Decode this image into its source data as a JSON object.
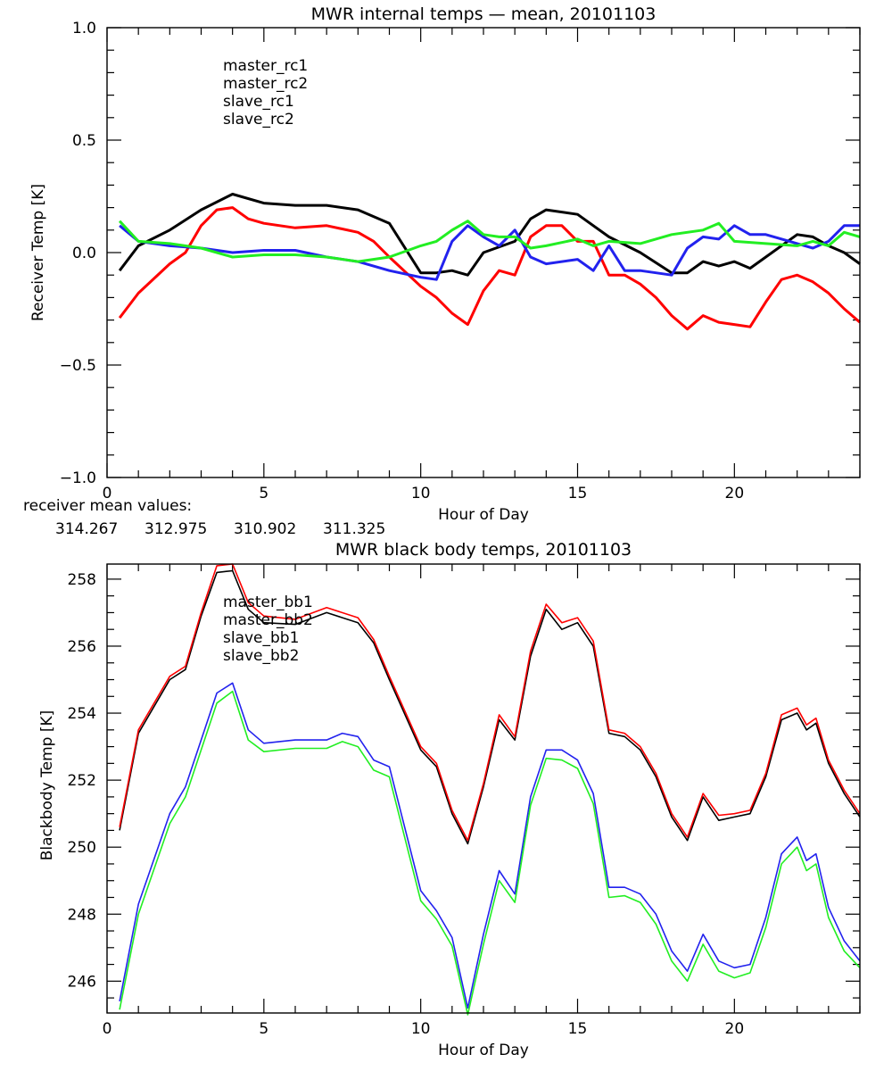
{
  "chart_data": [
    {
      "type": "line",
      "title": "MWR internal temps — mean, 20101103",
      "xlabel": "Hour of Day",
      "ylabel": "Receiver Temp [K]",
      "xlim": [
        0,
        24
      ],
      "ylim": [
        -1.0,
        1.0
      ],
      "xticks": [
        0,
        5,
        10,
        15,
        20
      ],
      "xtick_labels": [
        "0",
        "5",
        "10",
        "15",
        "20"
      ],
      "yticks": [
        -1.0,
        -0.5,
        0.0,
        0.5,
        1.0
      ],
      "ytick_labels": [
        "−1.0",
        "−0.5",
        "0.0",
        "0.5",
        "1.0"
      ],
      "grid": false,
      "legend_position": "top-left",
      "series": [
        {
          "name": "master_rc1",
          "color": "#000000",
          "x": [
            0.4,
            1,
            2,
            3,
            4,
            5,
            6,
            7,
            8,
            9,
            10,
            10.5,
            11,
            11.5,
            12,
            13,
            13.5,
            14,
            15,
            16,
            17,
            18,
            18.5,
            19,
            19.5,
            20,
            20.5,
            21,
            22,
            22.5,
            23,
            23.5,
            24
          ],
          "values": [
            -0.08,
            0.03,
            0.1,
            0.19,
            0.26,
            0.22,
            0.21,
            0.21,
            0.19,
            0.13,
            -0.09,
            -0.09,
            -0.08,
            -0.1,
            0.0,
            0.05,
            0.15,
            0.19,
            0.17,
            0.07,
            0.0,
            -0.09,
            -0.09,
            -0.04,
            -0.06,
            -0.04,
            -0.07,
            -0.02,
            0.08,
            0.07,
            0.03,
            0.0,
            -0.05
          ]
        },
        {
          "name": "master_rc2",
          "color": "#ff0000",
          "x": [
            0.4,
            1,
            2,
            2.5,
            3,
            3.5,
            4,
            4.5,
            5,
            6,
            7,
            8,
            8.5,
            9,
            10,
            10.5,
            11,
            11.5,
            12,
            12.5,
            13,
            13.5,
            14,
            14.5,
            15,
            15.5,
            16,
            16.5,
            17,
            17.5,
            18,
            18.5,
            19,
            19.5,
            20,
            20.5,
            21,
            21.5,
            22,
            22.5,
            23,
            23.5,
            24
          ],
          "values": [
            -0.29,
            -0.18,
            -0.05,
            0.0,
            0.12,
            0.19,
            0.2,
            0.15,
            0.13,
            0.11,
            0.12,
            0.09,
            0.05,
            -0.02,
            -0.15,
            -0.2,
            -0.27,
            -0.32,
            -0.17,
            -0.08,
            -0.1,
            0.07,
            0.12,
            0.12,
            0.05,
            0.05,
            -0.1,
            -0.1,
            -0.14,
            -0.2,
            -0.28,
            -0.34,
            -0.28,
            -0.31,
            -0.32,
            -0.33,
            -0.22,
            -0.12,
            -0.1,
            -0.13,
            -0.18,
            -0.25,
            -0.31
          ]
        },
        {
          "name": "slave_rc1",
          "color": "#2222ee",
          "x": [
            0.4,
            1,
            2,
            3,
            4,
            5,
            6,
            7,
            8,
            9,
            10,
            10.5,
            11,
            11.5,
            12,
            12.5,
            13,
            13.5,
            14,
            15,
            15.5,
            16,
            16.5,
            17,
            18,
            18.5,
            19,
            19.5,
            20,
            20.5,
            21,
            22,
            22.5,
            23,
            23.5,
            24
          ],
          "values": [
            0.12,
            0.05,
            0.03,
            0.02,
            0.0,
            0.01,
            0.01,
            -0.02,
            -0.04,
            -0.08,
            -0.11,
            -0.12,
            0.05,
            0.12,
            0.07,
            0.03,
            0.1,
            -0.02,
            -0.05,
            -0.03,
            -0.08,
            0.03,
            -0.08,
            -0.08,
            -0.1,
            0.02,
            0.07,
            0.06,
            0.12,
            0.08,
            0.08,
            0.04,
            0.02,
            0.05,
            0.12,
            0.12
          ]
        },
        {
          "name": "slave_rc2",
          "color": "#22ee22",
          "x": [
            0.4,
            1,
            2,
            3,
            4,
            5,
            6,
            7,
            8,
            9,
            10,
            10.5,
            11,
            11.5,
            12,
            12.5,
            13,
            13.5,
            14,
            15,
            15.5,
            16,
            17,
            18,
            19,
            19.5,
            20,
            21,
            22,
            22.5,
            23,
            23.5,
            24
          ],
          "values": [
            0.14,
            0.05,
            0.04,
            0.02,
            -0.02,
            -0.01,
            -0.01,
            -0.02,
            -0.04,
            -0.02,
            0.03,
            0.05,
            0.1,
            0.14,
            0.08,
            0.07,
            0.07,
            0.02,
            0.03,
            0.06,
            0.03,
            0.05,
            0.04,
            0.08,
            0.1,
            0.13,
            0.05,
            0.04,
            0.03,
            0.05,
            0.03,
            0.09,
            0.07
          ]
        }
      ],
      "annotation": {
        "label": "receiver mean values:",
        "values": [
          {
            "text": "314.267",
            "color": "#000000"
          },
          {
            "text": "312.975",
            "color": "#ff0000"
          },
          {
            "text": "310.902",
            "color": "#2222ee"
          },
          {
            "text": "311.325",
            "color": "#22ee22"
          }
        ]
      }
    },
    {
      "type": "line",
      "title": "MWR black body temps, 20101103",
      "xlabel": "Hour of Day",
      "ylabel": "Blackbody Temp [K]",
      "xlim": [
        0,
        24
      ],
      "ylim": [
        245.05,
        258.45
      ],
      "xticks": [
        0,
        5,
        10,
        15,
        20
      ],
      "xtick_labels": [
        "0",
        "5",
        "10",
        "15",
        "20"
      ],
      "yticks": [
        246,
        248,
        250,
        252,
        254,
        256,
        258
      ],
      "ytick_labels": [
        "246",
        "248",
        "250",
        "252",
        "254",
        "256",
        "258"
      ],
      "grid": false,
      "legend_position": "top-left",
      "series": [
        {
          "name": "master_bb1",
          "color": "#000000",
          "x": [
            0.4,
            1,
            2,
            2.5,
            3,
            3.5,
            4,
            4.5,
            5,
            6,
            7,
            8,
            8.5,
            9,
            10,
            10.5,
            11,
            11.5,
            12,
            12.5,
            13,
            13.5,
            14,
            14.5,
            15,
            15.5,
            16,
            16.5,
            17,
            17.5,
            18,
            18.5,
            19,
            19.5,
            20,
            20.5,
            21,
            21.5,
            22,
            22.3,
            22.6,
            23,
            23.5,
            24
          ],
          "values": [
            250.5,
            253.4,
            255.0,
            255.3,
            256.9,
            258.2,
            258.25,
            257.1,
            256.7,
            256.65,
            257.0,
            256.7,
            256.1,
            255.0,
            252.9,
            252.4,
            251.0,
            250.1,
            251.8,
            253.8,
            253.2,
            255.7,
            257.1,
            256.5,
            256.7,
            256.0,
            253.4,
            253.3,
            252.9,
            252.1,
            250.9,
            250.2,
            251.5,
            250.8,
            250.9,
            251.0,
            252.1,
            253.8,
            254.0,
            253.5,
            253.7,
            252.5,
            251.6,
            250.9
          ]
        },
        {
          "name": "master_bb2",
          "color": "#ff0000",
          "x": [
            0.4,
            1,
            2,
            2.5,
            3,
            3.5,
            4,
            4.5,
            5,
            6,
            7,
            8,
            8.5,
            9,
            10,
            10.5,
            11,
            11.5,
            12,
            12.5,
            13,
            13.5,
            14,
            14.5,
            15,
            15.5,
            16,
            16.5,
            17,
            17.5,
            18,
            18.5,
            19,
            19.5,
            20,
            20.5,
            21,
            21.5,
            22,
            22.3,
            22.6,
            23,
            23.5,
            24
          ],
          "values": [
            250.6,
            253.5,
            255.1,
            255.4,
            257.0,
            258.4,
            258.45,
            257.3,
            256.9,
            256.8,
            257.15,
            256.85,
            256.2,
            255.1,
            253.0,
            252.5,
            251.1,
            250.2,
            251.9,
            253.95,
            253.3,
            255.85,
            257.25,
            256.7,
            256.85,
            256.15,
            253.5,
            253.4,
            253.0,
            252.2,
            251.0,
            250.3,
            251.6,
            250.95,
            251.0,
            251.1,
            252.2,
            253.95,
            254.15,
            253.65,
            253.85,
            252.6,
            251.7,
            251.0
          ]
        },
        {
          "name": "slave_bb1",
          "color": "#2222ee",
          "x": [
            0.4,
            1,
            2,
            2.5,
            3,
            3.5,
            4,
            4.5,
            5,
            6,
            7,
            7.5,
            8,
            8.5,
            9,
            10,
            10.5,
            11,
            11.5,
            12,
            12.5,
            13,
            13.5,
            14,
            14.5,
            15,
            15.5,
            16,
            16.5,
            17,
            17.5,
            18,
            18.5,
            19,
            19.5,
            20,
            20.5,
            21,
            21.5,
            22,
            22.3,
            22.6,
            23,
            23.5,
            24
          ],
          "values": [
            245.4,
            248.3,
            251.0,
            251.8,
            253.2,
            254.6,
            254.9,
            253.5,
            253.1,
            253.2,
            253.2,
            253.4,
            253.3,
            252.6,
            252.4,
            248.7,
            248.1,
            247.3,
            245.2,
            247.4,
            249.3,
            248.6,
            251.5,
            252.9,
            252.9,
            252.6,
            251.6,
            248.8,
            248.8,
            248.6,
            248.0,
            246.9,
            246.3,
            247.4,
            246.6,
            246.4,
            246.5,
            247.9,
            249.8,
            250.3,
            249.6,
            249.8,
            248.2,
            247.2,
            246.6
          ]
        },
        {
          "name": "slave_bb2",
          "color": "#22ee22",
          "x": [
            0.4,
            1,
            2,
            2.5,
            3,
            3.5,
            4,
            4.5,
            5,
            6,
            7,
            7.5,
            8,
            8.5,
            9,
            10,
            10.5,
            11,
            11.5,
            12,
            12.5,
            13,
            13.5,
            14,
            14.5,
            15,
            15.5,
            16,
            16.5,
            17,
            17.5,
            18,
            18.5,
            19,
            19.5,
            20,
            20.5,
            21,
            21.5,
            22,
            22.3,
            22.6,
            23,
            23.5,
            24
          ],
          "values": [
            245.15,
            248.0,
            250.7,
            251.5,
            252.9,
            254.3,
            254.65,
            253.2,
            252.85,
            252.95,
            252.95,
            253.15,
            253.0,
            252.3,
            252.1,
            248.4,
            247.85,
            247.05,
            245.0,
            247.1,
            249.0,
            248.35,
            251.25,
            252.65,
            252.6,
            252.35,
            251.3,
            248.5,
            248.55,
            248.35,
            247.7,
            246.6,
            246.0,
            247.1,
            246.3,
            246.1,
            246.25,
            247.6,
            249.5,
            250.0,
            249.3,
            249.5,
            247.9,
            246.9,
            246.4
          ]
        }
      ]
    }
  ]
}
